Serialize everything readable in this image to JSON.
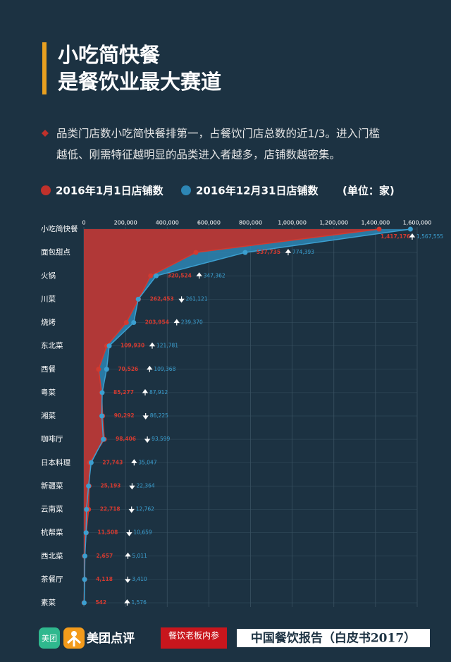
{
  "header": {
    "title_lines": [
      "小吃简快餐",
      "是餐饮业最大赛道"
    ],
    "bullet_lines": [
      "品类门店数小吃简快餐排第一，占餐饮门店总数的近1/3。进入门槛",
      "越低、刚需特征越明显的品类进入者越多，店铺数越密集。"
    ],
    "unit": "(单位：家)"
  },
  "chart_data": {
    "type": "line",
    "categories": [
      "小吃简快餐",
      "面包甜点",
      "火锅",
      "川菜",
      "烧烤",
      "东北菜",
      "西餐",
      "粤菜",
      "湘菜",
      "咖啡厅",
      "日本料理",
      "新疆菜",
      "云南菜",
      "杭帮菜",
      "西北菜",
      "茶餐厅",
      "素菜"
    ],
    "series": [
      {
        "name": "2016年1月1日店铺数",
        "color": "#c0312b",
        "values": [
          1417176,
          537735,
          320524,
          262453,
          203954,
          109930,
          70526,
          85277,
          90292,
          98406,
          27743,
          25193,
          22718,
          11508,
          2657,
          4118,
          542
        ],
        "value_labels": [
          "1,417,176",
          "537,735",
          "320,524",
          "262,453",
          "203,954",
          "109,930",
          "70,526",
          "85,277",
          "90,292",
          "98,406",
          "27,743",
          "25,193",
          "22,718",
          "11,508",
          "2,657",
          "4,118",
          "542"
        ]
      },
      {
        "name": "2016年12月31日店铺数",
        "color": "#2d86b4",
        "values": [
          1567555,
          774393,
          347362,
          261121,
          239370,
          121781,
          109368,
          87912,
          86225,
          93599,
          35047,
          22364,
          12762,
          10659,
          5011,
          3410,
          1576
        ],
        "value_labels": [
          "1,567,555",
          "774,393",
          "347,362",
          "261,121",
          "239,370",
          "121,781",
          "109,368",
          "87,912",
          "86,225",
          "93,599",
          "35,047",
          "22,364",
          "12,762",
          "10,659",
          "5,011",
          "3,410",
          "1,576"
        ]
      }
    ],
    "xlim": [
      0,
      1600000
    ],
    "xticks": [
      0,
      {
        "value": 200000,
        "label": "200,000"
      },
      {
        "value": 400000,
        "label": "400,000"
      },
      {
        "value": 600000,
        "label": "600,000"
      },
      {
        "value": 800000,
        "label": "800,000"
      },
      {
        "value": 1000000,
        "label": "1,000,000"
      },
      {
        "value": 1200000,
        "label": "1,200,000"
      },
      {
        "value": 1400000,
        "label": "1,400,000"
      },
      {
        "value": 1600000,
        "label": "1,600,000"
      }
    ],
    "grid": true
  },
  "footer": {
    "icon_text": "美团",
    "brand": "美团点评",
    "badge": "餐饮老板内参",
    "report": "中国餐饮报告（白皮书2017）"
  }
}
